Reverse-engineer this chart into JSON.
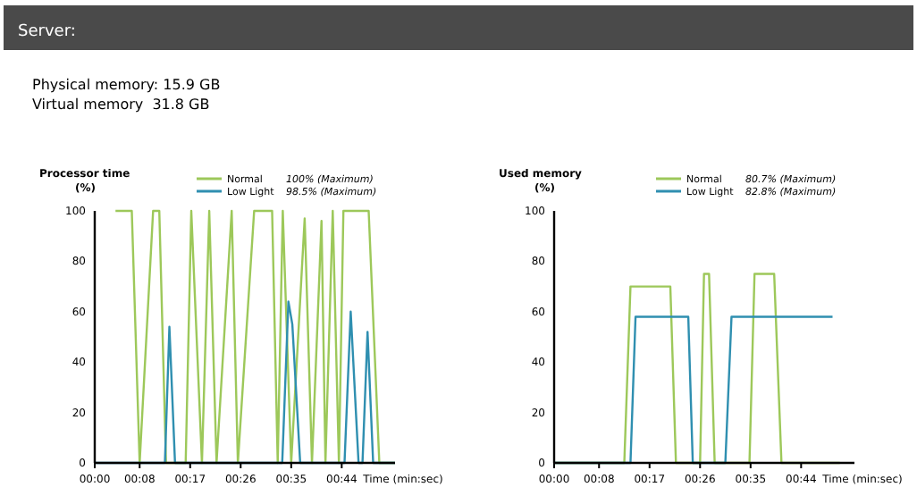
{
  "chart_data": [
    {
      "type": "other",
      "title": "Server:",
      "annotations": [
        "Physical memory: 15.9 GB",
        "Virtual memory  31.8 GB"
      ]
    },
    {
      "type": "line",
      "title": "Processor time",
      "ylabel": "(%)",
      "xlabel": "Time (min:sec)",
      "xlim": [
        0,
        53.5
      ],
      "ylim": [
        0,
        100
      ],
      "yticks": [
        0,
        20,
        40,
        60,
        80,
        100
      ],
      "xticks": [
        {
          "value": 0,
          "label": "00:00"
        },
        {
          "value": 8,
          "label": "00:08"
        },
        {
          "value": 17,
          "label": "00:17"
        },
        {
          "value": 26,
          "label": "00:26"
        },
        {
          "value": 35,
          "label": "00:35"
        },
        {
          "value": 44,
          "label": "00:44"
        }
      ],
      "grid": false,
      "legend": "top",
      "marker": "none",
      "line_style": "solid",
      "annotations": [
        "100% (Maximum)",
        "98.5% (Maximum)"
      ],
      "series": [
        {
          "name": "Normal",
          "color": "#9dc85a",
          "x": [
            3.7,
            6.6,
            8,
            10.4,
            11.5,
            12.7,
            16.2,
            17.2,
            19.1,
            20.4,
            21.7,
            24.4,
            25.5,
            28.4,
            31.6,
            32.6,
            33.5,
            35,
            37.4,
            38.7,
            40.4,
            41.1,
            42.4,
            43.5,
            44.3,
            48.8,
            50.7,
            53.5
          ],
          "values": [
            100,
            100,
            0,
            100,
            100,
            0,
            0,
            100,
            0,
            100,
            0,
            100,
            0,
            100,
            100,
            0,
            100,
            0,
            97,
            0,
            96,
            0,
            100,
            0,
            100,
            100,
            0,
            0
          ]
        },
        {
          "name": "Low Light",
          "color": "#2f8fb0",
          "x": [
            0,
            12.5,
            13.3,
            14.3,
            33.4,
            34.5,
            35.2,
            36.6,
            44.5,
            45.6,
            47,
            47.7,
            48.6,
            49.6,
            53.5
          ],
          "values": [
            0,
            0,
            54,
            0,
            0,
            64,
            55,
            0,
            0,
            60,
            0,
            0,
            52,
            0,
            0
          ]
        }
      ]
    },
    {
      "type": "line",
      "title": "Used memory",
      "ylabel": "(%)",
      "xlabel": "Time (min:sec)",
      "xlim": [
        0,
        53.5
      ],
      "ylim": [
        0,
        100
      ],
      "yticks": [
        0,
        20,
        40,
        60,
        80,
        100
      ],
      "xticks": [
        {
          "value": 0,
          "label": "00:00"
        },
        {
          "value": 8,
          "label": "00:08"
        },
        {
          "value": 17,
          "label": "00:17"
        },
        {
          "value": 26,
          "label": "00:26"
        },
        {
          "value": 35,
          "label": "00:35"
        },
        {
          "value": 44,
          "label": "00:44"
        }
      ],
      "grid": false,
      "legend": "top",
      "marker": "none",
      "line_style": "solid",
      "annotations": [
        "80.7% (Maximum)",
        "82.8% (Maximum)"
      ],
      "series": [
        {
          "name": "Normal",
          "color": "#9dc85a",
          "x": [
            0,
            12.5,
            13.6,
            20.7,
            21.7,
            26,
            26.7,
            27.6,
            28.6,
            34.8,
            35.7,
            39.2,
            40.5,
            50.9
          ],
          "values": [
            0,
            0,
            70,
            70,
            0,
            0,
            75,
            75,
            0,
            0,
            75,
            75,
            0,
            0
          ]
        },
        {
          "name": "Low Light",
          "color": "#2f8fb0",
          "x": [
            0,
            13.6,
            14.5,
            23.9,
            24.7,
            30.5,
            31.6,
            49.6
          ],
          "values": [
            0,
            0,
            58,
            58,
            0,
            0,
            58,
            58
          ]
        }
      ]
    }
  ]
}
